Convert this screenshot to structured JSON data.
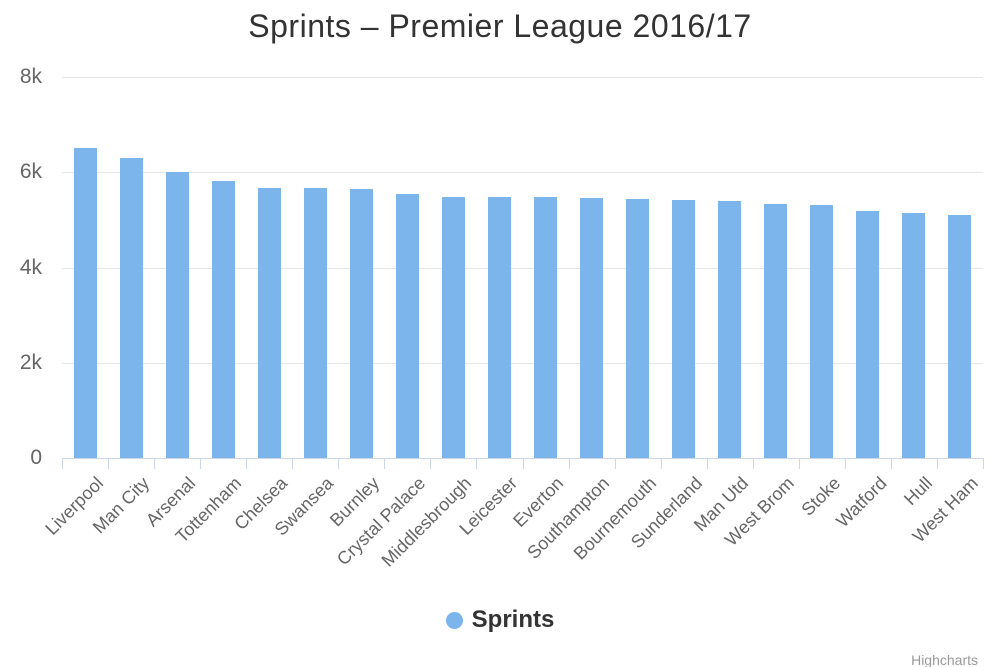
{
  "title": "Sprints – Premier League 2016/17",
  "credits": "Highcharts",
  "colors": {
    "bar": "#7cb5ec",
    "grid": "#e6e6e6",
    "axis_line": "#ccd6eb",
    "title_text": "#333333",
    "axis_text": "#666666",
    "legend_text": "#333333",
    "credits_text": "#999999",
    "background": "#ffffff"
  },
  "legend": {
    "items": [
      {
        "label": "Sprints",
        "color": "#7cb5ec"
      }
    ]
  },
  "chart_data": {
    "type": "bar",
    "title": "Sprints – Premier League 2016/17",
    "categories": [
      "Liverpool",
      "Man City",
      "Arsenal",
      "Tottenham",
      "Chelsea",
      "Swansea",
      "Burnley",
      "Crystal Palace",
      "Middlesbrough",
      "Leicester",
      "Everton",
      "Southampton",
      "Bournemouth",
      "Sunderland",
      "Man Utd",
      "West Brom",
      "Stoke",
      "Watford",
      "Hull",
      "West Ham"
    ],
    "series": [
      {
        "name": "Sprints",
        "color": "#7cb5ec",
        "values": [
          6500,
          6290,
          6000,
          5820,
          5670,
          5660,
          5650,
          5550,
          5490,
          5480,
          5470,
          5460,
          5440,
          5420,
          5400,
          5340,
          5320,
          5180,
          5140,
          5110
        ]
      }
    ],
    "xlabel": "",
    "ylabel": "",
    "ylim": [
      0,
      8000
    ],
    "yticks": [
      0,
      2000,
      4000,
      6000,
      8000
    ],
    "ytick_labels": [
      "0",
      "2k",
      "4k",
      "6k",
      "8k"
    ],
    "grid": true,
    "legend_position": "bottom",
    "x_label_rotation": -45
  }
}
